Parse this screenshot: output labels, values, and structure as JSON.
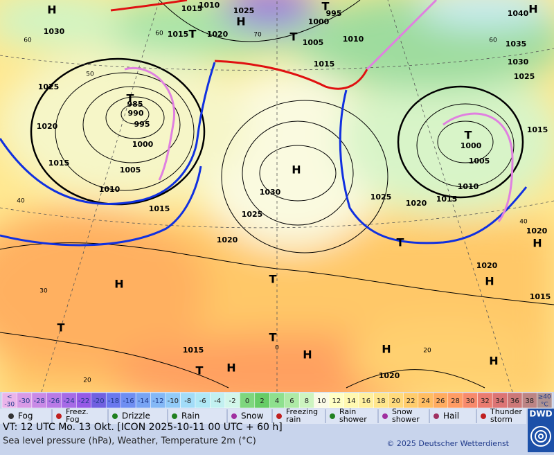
{
  "map": {
    "labels": [
      "H",
      "1015",
      "1010",
      "1025",
      "H",
      "T",
      "995",
      "1000",
      "1040",
      "H",
      "1030",
      "60",
      "60",
      "1015",
      "T",
      "1020",
      "70",
      "T",
      "1005",
      "1010",
      "60",
      "1035",
      "1015",
      "1030",
      "50",
      "1025",
      "1025",
      "T",
      "985",
      "990",
      "995",
      "1020",
      "1000",
      "1015",
      "T",
      "1000",
      "1015",
      "1005",
      "1005",
      "H",
      "1010",
      "1010",
      "1030",
      "1025",
      "1020",
      "1015",
      "40",
      "1015",
      "1025",
      "40",
      "1020",
      "1020",
      "T",
      "H",
      "1020",
      "H",
      "T",
      "30",
      "H",
      "1015",
      "T",
      "T",
      "20",
      "H",
      "H",
      "1015",
      "0",
      "H",
      "T",
      "H",
      "1020",
      "20"
    ]
  },
  "legend": {
    "scale": [
      {
        "top": "<",
        "bottom": "-30",
        "color": "#eab4ea"
      },
      {
        "label": "-30",
        "color": "#d89ae6"
      },
      {
        "label": "-28",
        "color": "#c98ae6"
      },
      {
        "label": "-26",
        "color": "#b87ae6"
      },
      {
        "label": "-24",
        "color": "#a66ae6"
      },
      {
        "label": "-22",
        "color": "#955ae6"
      },
      {
        "label": "-20",
        "color": "#7060e0"
      },
      {
        "label": "-18",
        "color": "#6a78ee"
      },
      {
        "label": "-16",
        "color": "#6f8ef2"
      },
      {
        "label": "-14",
        "color": "#78a4f4"
      },
      {
        "label": "-12",
        "color": "#84b8f6"
      },
      {
        "label": "-10",
        "color": "#92cbf8"
      },
      {
        "label": "-8",
        "color": "#a2dcf8"
      },
      {
        "label": "-6",
        "color": "#b0e8f6"
      },
      {
        "label": "-4",
        "color": "#c2f0f0"
      },
      {
        "label": "-2",
        "color": "#d2f6ea"
      },
      {
        "label": "0",
        "color": "#7ed67e"
      },
      {
        "label": "2",
        "color": "#66cc66"
      },
      {
        "label": "4",
        "color": "#8ee08e"
      },
      {
        "label": "6",
        "color": "#aeeaa6"
      },
      {
        "label": "8",
        "color": "#cdf4c0"
      },
      {
        "label": "10",
        "color": "#fafae6"
      },
      {
        "label": "12",
        "color": "#ffffc4"
      },
      {
        "label": "14",
        "color": "#fff8b0"
      },
      {
        "label": "16",
        "color": "#fff09e"
      },
      {
        "label": "18",
        "color": "#ffe68c"
      },
      {
        "label": "20",
        "color": "#ffda7c"
      },
      {
        "label": "22",
        "color": "#ffcc6c"
      },
      {
        "label": "24",
        "color": "#ffbd62"
      },
      {
        "label": "26",
        "color": "#ffac60"
      },
      {
        "label": "28",
        "color": "#ff9c64"
      },
      {
        "label": "30",
        "color": "#f78a6c"
      },
      {
        "label": "32",
        "color": "#ea7c70"
      },
      {
        "label": "34",
        "color": "#dc7474"
      },
      {
        "label": "36",
        "color": "#cc7878"
      },
      {
        "label": "38",
        "color": "#bc8484"
      },
      {
        "top": "≥40",
        "bottom": "°C",
        "color": "#ad9292"
      }
    ],
    "weather": [
      {
        "label": "Fog"
      },
      {
        "top": "Freez.",
        "bottom": "Fog"
      },
      {
        "label": "Drizzle"
      },
      {
        "label": "Rain"
      },
      {
        "label": "Snow"
      },
      {
        "top": "Freezing",
        "bottom": "rain"
      },
      {
        "top": "Rain",
        "bottom": "shower"
      },
      {
        "top": "Snow",
        "bottom": "shower"
      },
      {
        "label": "Hail"
      },
      {
        "top": "Thunder",
        "bottom": "storm"
      }
    ]
  },
  "footer": {
    "valid_time": "VT: 12 UTC Mo.  13 Okt. [ICON 2025-10-11  00 UTC + 60 h]",
    "description": "Sea level pressure (hPa), Weather, Temperature 2m (°C)",
    "copyright": "© 2025 Deutscher Wetterdienst",
    "logo": "DWD"
  }
}
